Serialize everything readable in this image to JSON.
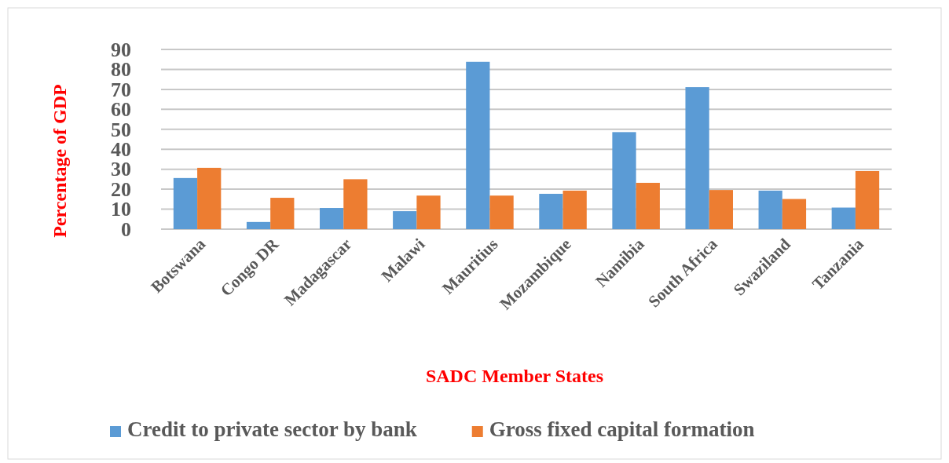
{
  "chart_data": {
    "type": "bar",
    "xlabel": "SADC Member States",
    "ylabel": "Percentage of GDP",
    "categories": [
      "Botswana",
      "Congo DR",
      "Madagascar",
      "Malawi",
      "Mauritius",
      "Mozambique",
      "Namibia",
      "South Africa",
      "Swaziland",
      "Tanzania"
    ],
    "series": [
      {
        "name": "Credit to private sector by bank",
        "color": "#5b9bd5",
        "values": [
          25.6,
          3.6,
          10.6,
          9,
          83.8,
          17.7,
          48.6,
          71.1,
          19.3,
          10.8
        ]
      },
      {
        "name": "Gross fixed capital formation",
        "color": "#ed7d31",
        "values": [
          30.7,
          15.7,
          25,
          16.8,
          16.8,
          19.3,
          23.2,
          19.6,
          15.1,
          29.1
        ]
      }
    ],
    "ylim": [
      0,
      90
    ],
    "yticks": [
      0,
      10,
      20,
      30,
      40,
      50,
      60,
      70,
      80,
      90
    ],
    "grid": "y",
    "legend": "bottom"
  }
}
